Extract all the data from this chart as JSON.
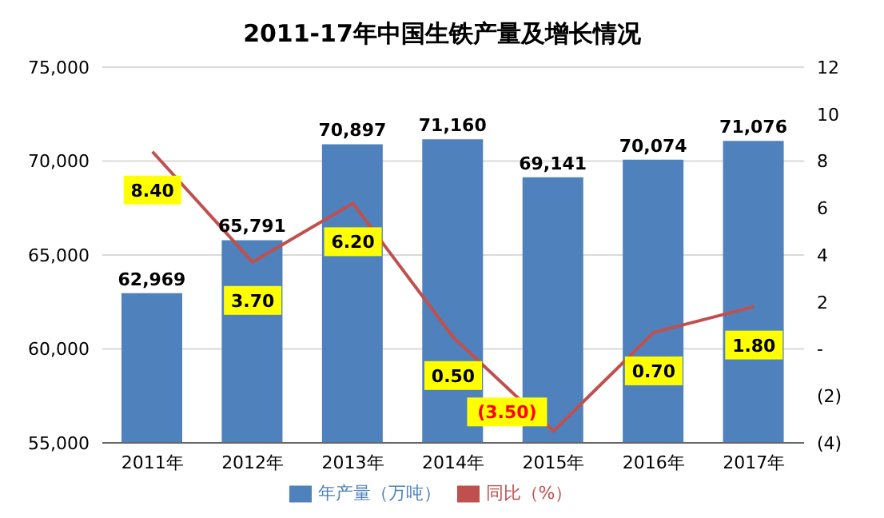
{
  "chart_data": {
    "type": "bar",
    "title": "2011-17年中国生铁产量及增长情况",
    "categories": [
      "2011年",
      "2012年",
      "2013年",
      "2014年",
      "2015年",
      "2016年",
      "2017年"
    ],
    "series": [
      {
        "name": "年产量（万吨）",
        "color": "#4f81bd",
        "values": [
          62969,
          65791,
          70897,
          71160,
          69141,
          70074,
          71076
        ],
        "value_labels": [
          "62,969",
          "65,791",
          "70,897",
          "71,160",
          "69,141",
          "70,074",
          "71,076"
        ]
      },
      {
        "name": "同比（%）",
        "type": "line",
        "axis": "y2",
        "color": "#c0504d",
        "values": [
          8.4,
          3.7,
          6.2,
          0.5,
          -3.5,
          0.7,
          1.8
        ],
        "value_labels": [
          "8.40",
          "3.70",
          "6.20",
          "0.50",
          "(3.50)",
          "0.70",
          "1.80"
        ]
      }
    ],
    "ylim": [
      55000,
      75000
    ],
    "yticks": [
      {
        "value": 55000,
        "label": "55,000"
      },
      {
        "value": 60000,
        "label": "60,000"
      },
      {
        "value": 65000,
        "label": "65,000"
      },
      {
        "value": 70000,
        "label": "70,000"
      },
      {
        "value": 75000,
        "label": "75,000"
      }
    ],
    "y2lim": [
      -4,
      12
    ],
    "y2ticks": [
      {
        "value": -4,
        "label": "(4)"
      },
      {
        "value": -2,
        "label": "(2)"
      },
      {
        "value": 0,
        "label": "-"
      },
      2,
      4,
      6,
      8,
      10,
      12
    ],
    "grid": "y",
    "legend": "bottom",
    "marker": "none"
  }
}
